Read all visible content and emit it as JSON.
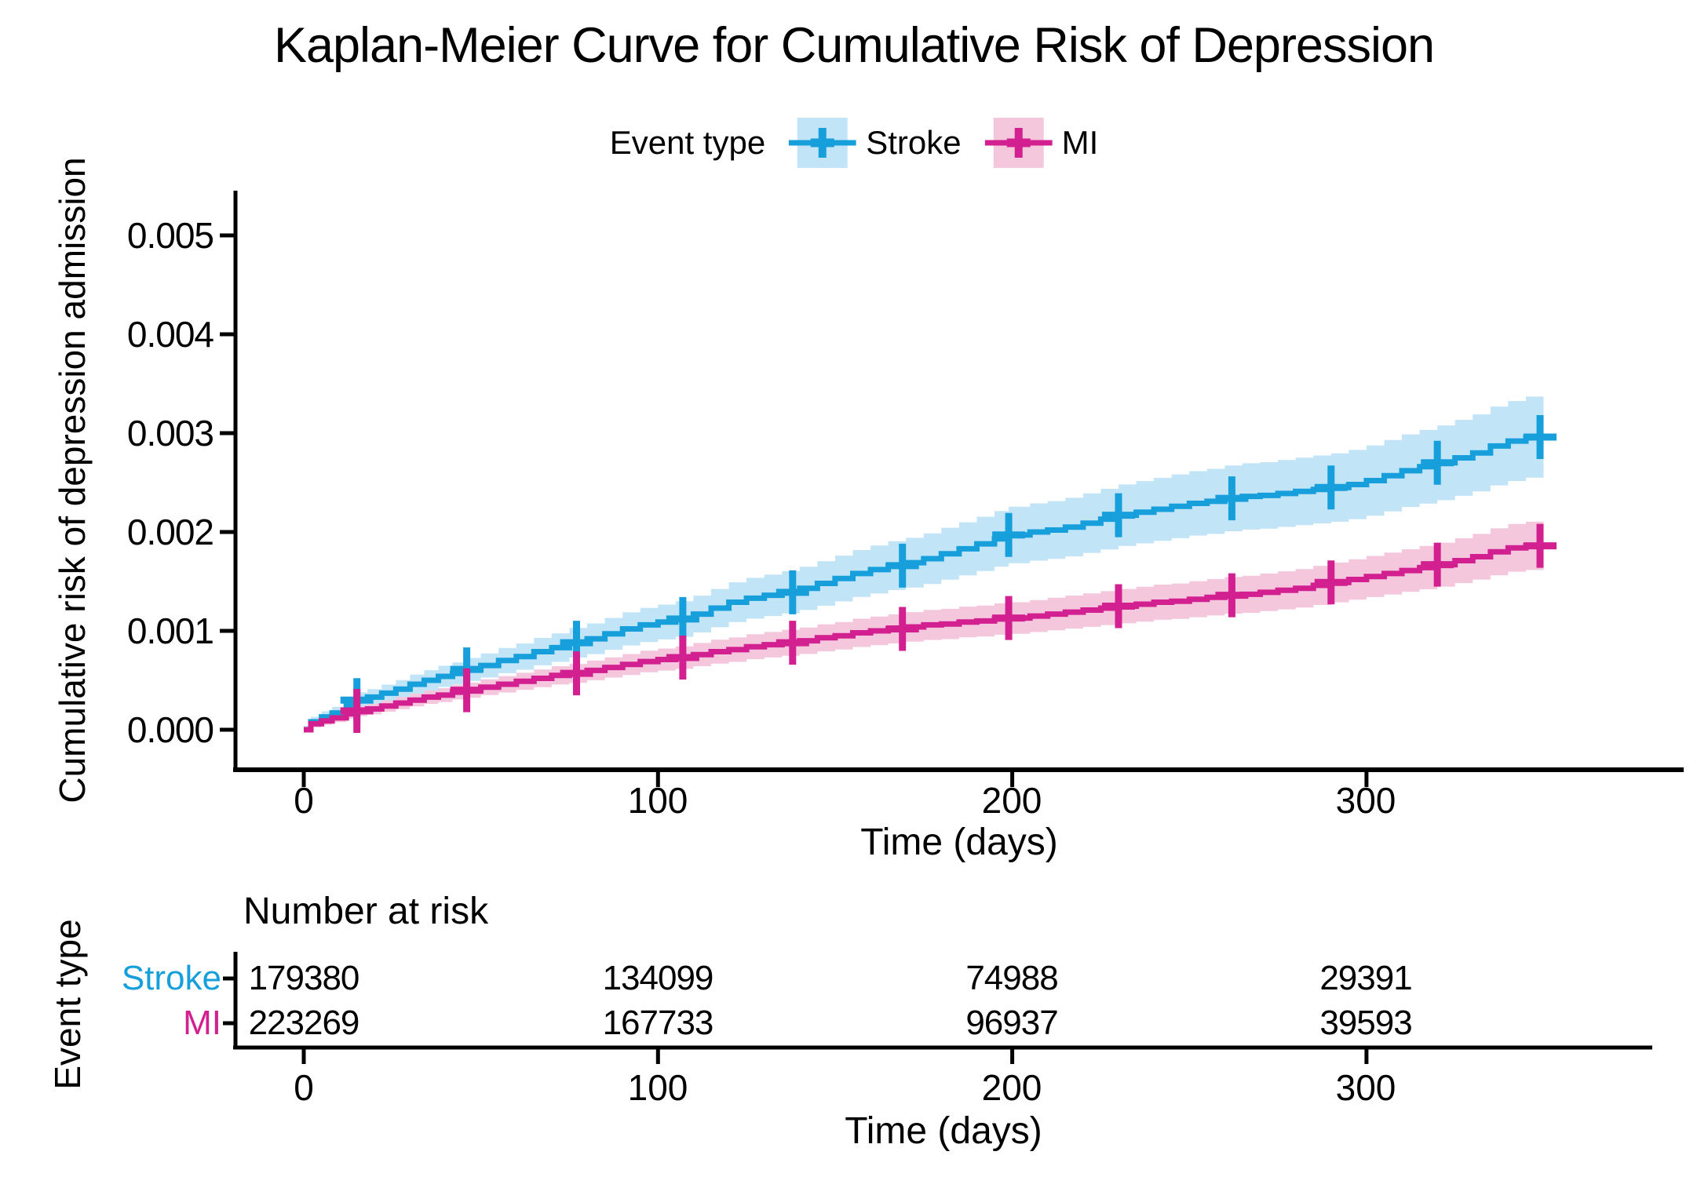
{
  "title": "Kaplan-Meier Curve for Cumulative Risk of Depression",
  "legend": {
    "label": "Event type",
    "items": [
      {
        "name": "Stroke",
        "line_color": "#179FDB",
        "band_color": "#C1E4F7"
      },
      {
        "name": "MI",
        "line_color": "#D22090",
        "band_color": "#F4C7DD"
      }
    ]
  },
  "y_axis": {
    "label": "Cumulative risk of depression admission"
  },
  "x_axis": {
    "label": "Time (days)"
  },
  "risk_table": {
    "title": "Number at risk",
    "axis_label": "Event type",
    "x_label": "Time (days)",
    "rows": [
      {
        "name": "Stroke",
        "color": "#179FDB",
        "counts": [
          "179380",
          "134099",
          "74988",
          "29391"
        ]
      },
      {
        "name": "MI",
        "color": "#D22090",
        "counts": [
          "223269",
          "167733",
          "96937",
          "39593"
        ]
      }
    ]
  },
  "chart_data": {
    "type": "line",
    "subtype": "kaplan-meier-step-with-ci-band",
    "title": "Kaplan-Meier Curve for Cumulative Risk of Depression",
    "xlabel": "Time (days)",
    "ylabel": "Cumulative risk of depression admission",
    "xlim": [
      0,
      390
    ],
    "ylim": [
      0,
      0.0052
    ],
    "x_ticks": [
      0,
      100,
      200,
      300
    ],
    "y_ticks": [
      0.0,
      0.001,
      0.002,
      0.003,
      0.004,
      0.005
    ],
    "x_tick_labels": [
      "0",
      "100",
      "200",
      "300"
    ],
    "y_tick_labels": [
      "0.000",
      "0.001",
      "0.002",
      "0.003",
      "0.004",
      "0.005"
    ],
    "grid": false,
    "legend_title": "Event type",
    "legend_position": "top",
    "series": [
      {
        "name": "Stroke",
        "line_color": "#179FDB",
        "band_color": "#C1E4F7",
        "ci_base": 4e-05,
        "ci_factor": 0.125,
        "censor_days": [
          15,
          46,
          77,
          107,
          138,
          169,
          199,
          230,
          262,
          290,
          320,
          349
        ],
        "points": [
          [
            0,
            0
          ],
          [
            2,
            8e-05
          ],
          [
            5,
            0.00013
          ],
          [
            8,
            0.00017
          ],
          [
            12,
            0.00024
          ],
          [
            15,
            0.0003
          ],
          [
            18,
            0.00033
          ],
          [
            22,
            0.00037
          ],
          [
            26,
            0.00041
          ],
          [
            30,
            0.00046
          ],
          [
            34,
            0.0005
          ],
          [
            38,
            0.00054
          ],
          [
            42,
            0.00057
          ],
          [
            46,
            0.00061
          ],
          [
            50,
            0.00065
          ],
          [
            55,
            0.0007
          ],
          [
            60,
            0.00074
          ],
          [
            65,
            0.00079
          ],
          [
            70,
            0.00083
          ],
          [
            75,
            0.00088
          ],
          [
            80,
            0.00092
          ],
          [
            85,
            0.00097
          ],
          [
            90,
            0.00102
          ],
          [
            95,
            0.00106
          ],
          [
            100,
            0.00109
          ],
          [
            105,
            0.00112
          ],
          [
            110,
            0.00117
          ],
          [
            115,
            0.00123
          ],
          [
            120,
            0.00129
          ],
          [
            125,
            0.00133
          ],
          [
            130,
            0.00136
          ],
          [
            135,
            0.00139
          ],
          [
            140,
            0.00143
          ],
          [
            145,
            0.00148
          ],
          [
            150,
            0.00153
          ],
          [
            155,
            0.00158
          ],
          [
            160,
            0.00162
          ],
          [
            165,
            0.00166
          ],
          [
            170,
            0.00169
          ],
          [
            175,
            0.00173
          ],
          [
            180,
            0.00178
          ],
          [
            185,
            0.00183
          ],
          [
            190,
            0.00188
          ],
          [
            195,
            0.00193
          ],
          [
            199,
            0.00197
          ],
          [
            205,
            0.002
          ],
          [
            210,
            0.00202
          ],
          [
            215,
            0.00205
          ],
          [
            220,
            0.00209
          ],
          [
            225,
            0.00213
          ],
          [
            230,
            0.00217
          ],
          [
            235,
            0.0022
          ],
          [
            240,
            0.00223
          ],
          [
            245,
            0.00226
          ],
          [
            250,
            0.00229
          ],
          [
            255,
            0.00231
          ],
          [
            260,
            0.00234
          ],
          [
            265,
            0.00236
          ],
          [
            270,
            0.00237
          ],
          [
            275,
            0.00239
          ],
          [
            280,
            0.00241
          ],
          [
            285,
            0.00243
          ],
          [
            290,
            0.00245
          ],
          [
            295,
            0.00248
          ],
          [
            300,
            0.00252
          ],
          [
            305,
            0.00257
          ],
          [
            310,
            0.00262
          ],
          [
            315,
            0.00266
          ],
          [
            320,
            0.0027
          ],
          [
            325,
            0.00275
          ],
          [
            330,
            0.0028
          ],
          [
            335,
            0.00287
          ],
          [
            340,
            0.00292
          ],
          [
            345,
            0.00296
          ],
          [
            350,
            0.00299
          ]
        ]
      },
      {
        "name": "MI",
        "line_color": "#D22090",
        "band_color": "#F4C7DD",
        "ci_base": 3e-05,
        "ci_factor": 0.115,
        "censor_days": [
          15,
          46,
          77,
          107,
          138,
          169,
          199,
          230,
          262,
          290,
          320,
          349
        ],
        "points": [
          [
            0,
            0
          ],
          [
            2,
            6e-05
          ],
          [
            5,
            9e-05
          ],
          [
            8,
            0.00012
          ],
          [
            12,
            0.00016
          ],
          [
            15,
            0.00019
          ],
          [
            18,
            0.00021
          ],
          [
            22,
            0.00024
          ],
          [
            26,
            0.00027
          ],
          [
            30,
            0.0003
          ],
          [
            34,
            0.00033
          ],
          [
            38,
            0.00035
          ],
          [
            42,
            0.00038
          ],
          [
            46,
            0.0004
          ],
          [
            50,
            0.00043
          ],
          [
            55,
            0.00046
          ],
          [
            60,
            0.00049
          ],
          [
            65,
            0.00052
          ],
          [
            70,
            0.00055
          ],
          [
            75,
            0.00057
          ],
          [
            80,
            0.0006
          ],
          [
            85,
            0.00063
          ],
          [
            90,
            0.00066
          ],
          [
            95,
            0.00069
          ],
          [
            100,
            0.00071
          ],
          [
            105,
            0.00073
          ],
          [
            110,
            0.00076
          ],
          [
            115,
            0.00079
          ],
          [
            120,
            0.00081
          ],
          [
            125,
            0.00084
          ],
          [
            130,
            0.00086
          ],
          [
            135,
            0.00088
          ],
          [
            140,
            0.0009
          ],
          [
            145,
            0.00093
          ],
          [
            150,
            0.00095
          ],
          [
            155,
            0.00098
          ],
          [
            160,
            0.001
          ],
          [
            165,
            0.00102
          ],
          [
            170,
            0.00104
          ],
          [
            175,
            0.00106
          ],
          [
            180,
            0.00107
          ],
          [
            185,
            0.00109
          ],
          [
            190,
            0.0011
          ],
          [
            195,
            0.00112
          ],
          [
            199,
            0.00113
          ],
          [
            205,
            0.00115
          ],
          [
            210,
            0.00117
          ],
          [
            215,
            0.00119
          ],
          [
            220,
            0.00121
          ],
          [
            225,
            0.00123
          ],
          [
            230,
            0.00125
          ],
          [
            235,
            0.00127
          ],
          [
            240,
            0.00129
          ],
          [
            245,
            0.0013
          ],
          [
            250,
            0.00132
          ],
          [
            255,
            0.00134
          ],
          [
            260,
            0.00136
          ],
          [
            265,
            0.00137
          ],
          [
            270,
            0.00139
          ],
          [
            275,
            0.00141
          ],
          [
            280,
            0.00143
          ],
          [
            285,
            0.00146
          ],
          [
            290,
            0.00149
          ],
          [
            295,
            0.00152
          ],
          [
            300,
            0.00155
          ],
          [
            305,
            0.00158
          ],
          [
            310,
            0.00161
          ],
          [
            315,
            0.00164
          ],
          [
            320,
            0.00167
          ],
          [
            325,
            0.00171
          ],
          [
            330,
            0.00175
          ],
          [
            335,
            0.0018
          ],
          [
            340,
            0.00184
          ],
          [
            345,
            0.00186
          ],
          [
            350,
            0.00187
          ]
        ]
      }
    ],
    "number_at_risk": {
      "times": [
        0,
        100,
        200,
        300
      ],
      "Stroke": [
        179380,
        134099,
        74988,
        29391
      ],
      "MI": [
        223269,
        167733,
        96937,
        39593
      ]
    }
  }
}
